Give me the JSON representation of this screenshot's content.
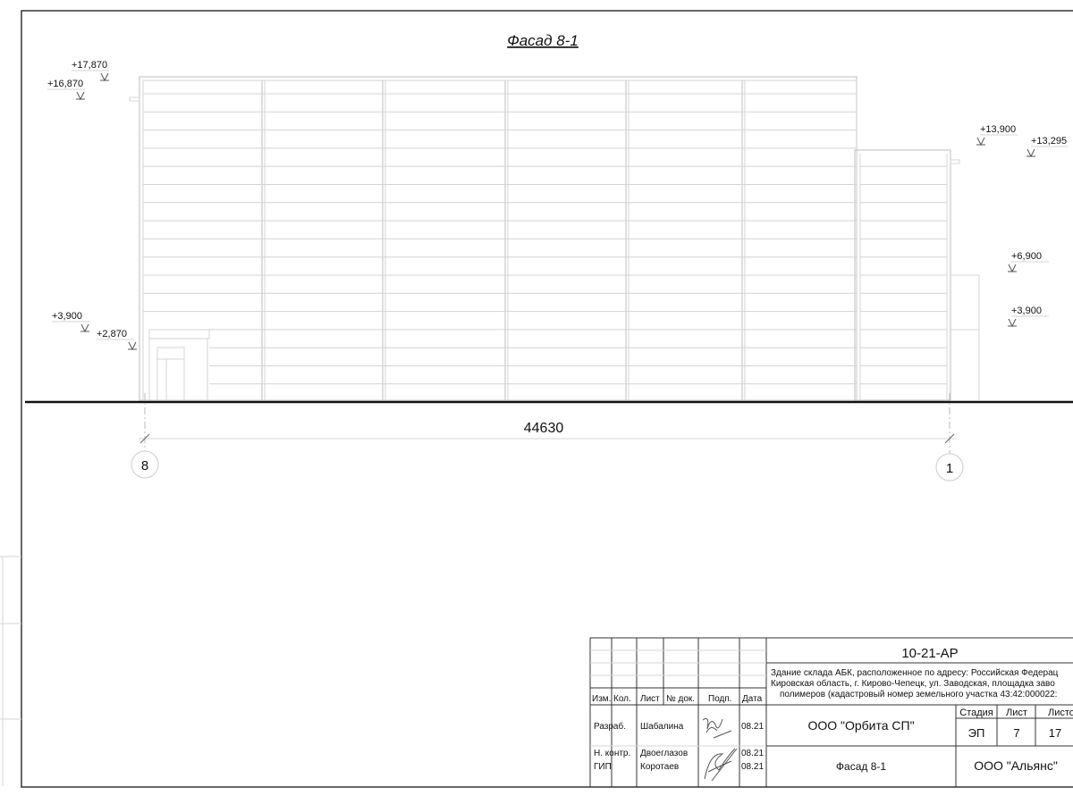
{
  "drawing": {
    "title": "Фасад 8-1",
    "levels_left": [
      "+17,870",
      "+16,870",
      "+3,900",
      "+2,870"
    ],
    "levels_right": [
      "+13,900",
      "+13,295",
      "+6,900",
      "+3,900"
    ],
    "dimension": "44630",
    "axes": [
      "8",
      "1"
    ]
  },
  "title_block": {
    "code": "10-21-AP",
    "address": [
      "Здание склада АБК, расположенное по адресу: Российская Федерац",
      "Кировская область, г. Кирово-Чепецк, ул. Заводская, площадка заво",
      "полимеров (кадастровый номер земельного участка 43:42:000022:"
    ],
    "headers": [
      "Изм.",
      "Кол.",
      "Лист",
      "№ док.",
      "Подп.",
      "Дата"
    ],
    "roles": [
      {
        "role": "Разраб.",
        "name": "Шабалина",
        "date": "08.21"
      },
      {
        "role": "Н. контр.",
        "name": "Двоеглазов",
        "date": "08.21"
      },
      {
        "role": "ГИП",
        "name": "Коротаев",
        "date": "08.21"
      }
    ],
    "org": "ООО \"Орбита СП\"",
    "sheet_name": "Фасад 8-1",
    "stage_label": "Стадия",
    "sheet_label": "Лист",
    "sheets_label": "Листо",
    "stage": "ЭП",
    "sheet": "7",
    "sheets": "17",
    "company": "ООО \"Альянс\""
  }
}
